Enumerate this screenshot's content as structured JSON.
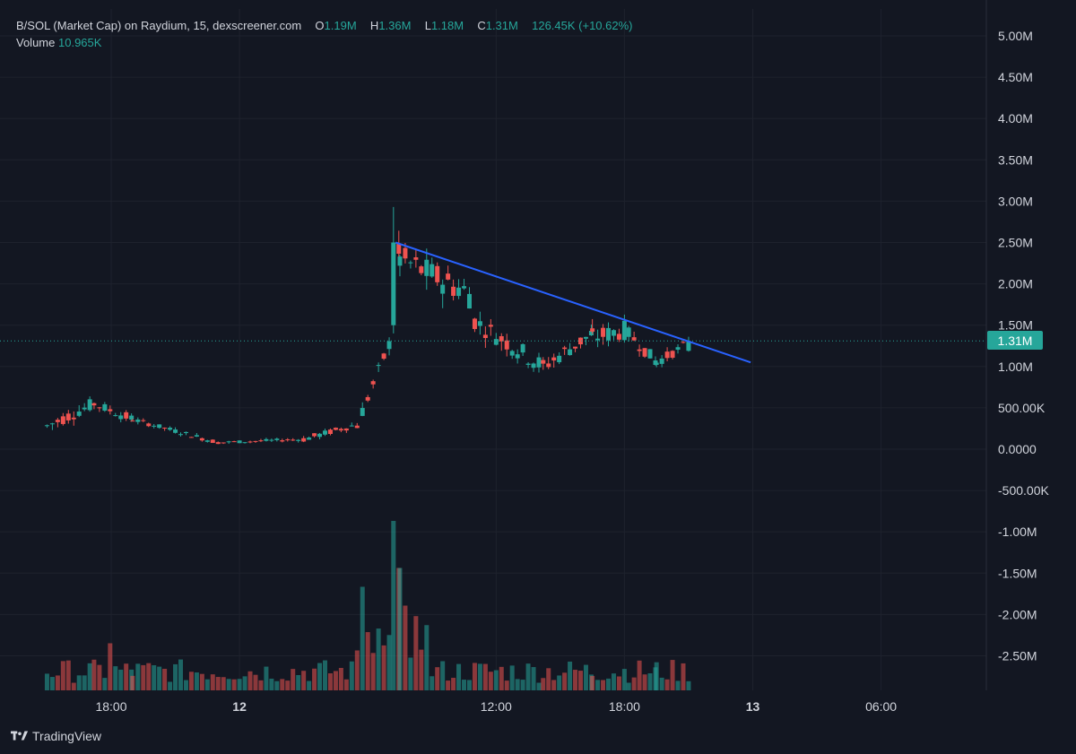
{
  "header": {
    "symbol": "B/SOL (Market Cap) on Raydium, 15, dexscreener.com",
    "open_label": "O",
    "open": "1.19M",
    "high_label": "H",
    "high": "1.36M",
    "low_label": "L",
    "low": "1.18M",
    "close_label": "C",
    "close": "1.31M",
    "change": "126.45K (+10.62%)",
    "volume_label": "Volume",
    "volume": "10.965K"
  },
  "footer": {
    "brand": "TradingView"
  },
  "colors": {
    "background": "#131722",
    "up": "#26a69a",
    "down": "#ef5350",
    "trendline": "#2962ff",
    "grid": "#1e222d"
  },
  "chart_data": {
    "type": "candlestick",
    "y_ticks": [
      "5.00M",
      "4.50M",
      "4.00M",
      "3.50M",
      "3.00M",
      "2.50M",
      "2.00M",
      "1.50M",
      "1.00M",
      "500.00K",
      "0.0000",
      "-500.00K",
      "-1.00M",
      "-1.50M",
      "-2.00M",
      "-2.50M"
    ],
    "ylim": [
      -2.9,
      5.3
    ],
    "x_ticks": [
      "18:00",
      "12",
      "12:00",
      "18:00",
      "13",
      "06:00"
    ],
    "x_tick_hours": [
      18,
      24,
      36,
      42,
      48,
      54
    ],
    "x_tick_bold": [
      false,
      true,
      false,
      false,
      true,
      false
    ],
    "xlim_hours": [
      14.8,
      61.0
    ],
    "last_price": "1.31M",
    "last_price_value": 1.31,
    "trendline": {
      "x1": 31.3,
      "y1": 2.5,
      "x2": 47.9,
      "y2": 1.05
    },
    "segments": [
      {
        "t0": 15.0,
        "t1": 17.2,
        "from": 0.28,
        "to": 0.55,
        "step": 0.25,
        "noise": 0.08
      },
      {
        "t0": 17.2,
        "t1": 19.0,
        "from": 0.55,
        "to": 0.36,
        "step": 0.25,
        "noise": 0.06
      },
      {
        "t0": 19.0,
        "t1": 23.0,
        "from": 0.36,
        "to": 0.08,
        "step": 0.25,
        "noise": 0.03
      },
      {
        "t0": 23.0,
        "t1": 27.0,
        "from": 0.08,
        "to": 0.12,
        "step": 0.25,
        "noise": 0.02
      },
      {
        "t0": 27.0,
        "t1": 29.5,
        "from": 0.12,
        "to": 0.3,
        "step": 0.25,
        "noise": 0.04
      },
      {
        "t0": 29.5,
        "t1": 31.2,
        "from": 0.3,
        "to": 1.4,
        "step": 0.25,
        "noise": 0.08
      },
      {
        "t0": 31.2,
        "t1": 31.5,
        "from": 1.4,
        "to": 2.5,
        "step": 0.25,
        "noise": 0.2
      },
      {
        "t0": 31.5,
        "t1": 35.0,
        "from": 2.3,
        "to": 1.85,
        "step": 0.25,
        "noise": 0.18
      },
      {
        "t0": 35.0,
        "t1": 38.2,
        "from": 1.55,
        "to": 1.0,
        "step": 0.25,
        "noise": 0.12
      },
      {
        "t0": 38.2,
        "t1": 40.5,
        "from": 1.0,
        "to": 1.4,
        "step": 0.25,
        "noise": 0.1
      },
      {
        "t0": 40.5,
        "t1": 42.2,
        "from": 1.35,
        "to": 1.45,
        "step": 0.25,
        "noise": 0.12
      },
      {
        "t0": 42.2,
        "t1": 43.5,
        "from": 1.4,
        "to": 1.05,
        "step": 0.25,
        "noise": 0.08
      },
      {
        "t0": 43.5,
        "t1": 45.2,
        "from": 1.05,
        "to": 1.31,
        "step": 0.25,
        "noise": 0.06
      }
    ],
    "volume_spikes": [
      {
        "t": 31.2,
        "v": 1.8
      },
      {
        "t": 31.45,
        "v": 1.3
      },
      {
        "t": 29.8,
        "v": 1.1
      },
      {
        "t": 31.7,
        "v": 0.9
      },
      {
        "t": 18.0,
        "v": 0.5
      }
    ]
  }
}
